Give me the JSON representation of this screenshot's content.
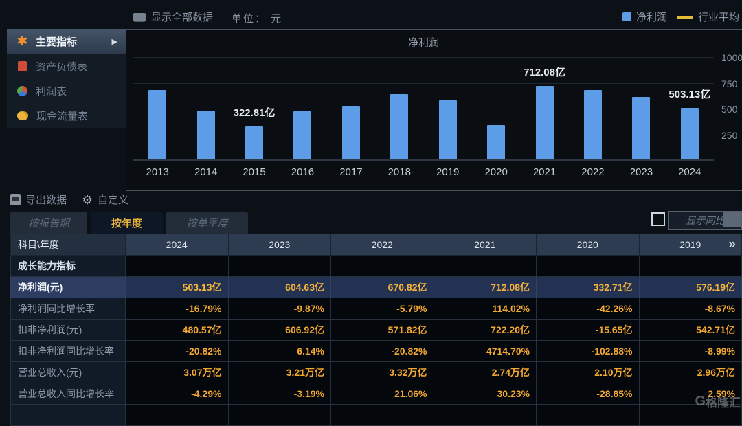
{
  "top_bar": {
    "show_all_label": "显示全部数据",
    "unit_label": "单位： 元",
    "legend": [
      {
        "label": "净利润",
        "color": "#5d9ce6",
        "type": "square"
      },
      {
        "label": "行业平均",
        "color": "#e3bc38",
        "type": "line"
      }
    ]
  },
  "sidebar": {
    "items": [
      {
        "label": "主要指标",
        "icon": "asterisk",
        "active": true
      },
      {
        "label": "资产负债表",
        "icon": "doc",
        "active": false
      },
      {
        "label": "利润表",
        "icon": "pie",
        "active": false
      },
      {
        "label": "现金流量表",
        "icon": "coins",
        "active": false
      }
    ]
  },
  "chart_data": {
    "type": "bar",
    "title": "净利润",
    "series_name": "净利润",
    "secondary_series_name": "行业平均",
    "categories": [
      "2013",
      "2014",
      "2015",
      "2016",
      "2017",
      "2018",
      "2019",
      "2020",
      "2021",
      "2022",
      "2023",
      "2024"
    ],
    "values": [
      671.8,
      474.4,
      322.81,
      464.2,
      511.2,
      630.9,
      576.19,
      332.71,
      712.08,
      670.82,
      604.63,
      503.13
    ],
    "data_labels": {
      "2015": "322.81亿",
      "2021": "712.08亿",
      "2024": "503.13亿"
    },
    "unit": "亿",
    "xlabel": "",
    "ylabel": "",
    "ylim": [
      0,
      1000
    ],
    "yticks": [
      250,
      500,
      750,
      1000
    ],
    "grid": true,
    "bar_color": "#5d9ce6",
    "legend_position": "top-right"
  },
  "toolbar": {
    "export_label": "导出数据",
    "customize_label": "自定义"
  },
  "tabs": [
    {
      "label": "按报告期",
      "active": false
    },
    {
      "label": "按年度",
      "active": true
    },
    {
      "label": "按单季度",
      "active": false
    }
  ],
  "yoy": {
    "label": "显示同比",
    "checked": false
  },
  "table": {
    "header": [
      "科目\\年度",
      "2024",
      "2023",
      "2022",
      "2021",
      "2020",
      "2019"
    ],
    "more_icon": "»",
    "rows": [
      {
        "label": "成长能力指标",
        "type": "section",
        "values": [
          "",
          "",
          "",
          "",
          "",
          ""
        ]
      },
      {
        "label": "净利润(元)",
        "type": "highlight",
        "values": [
          "503.13亿",
          "604.63亿",
          "670.82亿",
          "712.08亿",
          "332.71亿",
          "576.19亿"
        ]
      },
      {
        "label": "净利润同比增长率",
        "type": "normal",
        "values": [
          "-16.79%",
          "-9.87%",
          "-5.79%",
          "114.02%",
          "-42.26%",
          "-8.67%"
        ]
      },
      {
        "label": "扣非净利润(元)",
        "type": "normal",
        "values": [
          "480.57亿",
          "606.92亿",
          "571.82亿",
          "722.20亿",
          "-15.65亿",
          "542.71亿"
        ]
      },
      {
        "label": "扣非净利润同比增长率",
        "type": "normal",
        "values": [
          "-20.82%",
          "6.14%",
          "-20.82%",
          "4714.70%",
          "-102.88%",
          "-8.99%"
        ]
      },
      {
        "label": "营业总收入(元)",
        "type": "normal",
        "values": [
          "3.07万亿",
          "3.21万亿",
          "3.32万亿",
          "2.74万亿",
          "2.10万亿",
          "2.96万亿"
        ]
      },
      {
        "label": "营业总收入同比增长率",
        "type": "normal",
        "values": [
          "-4.29%",
          "-3.19%",
          "21.06%",
          "30.23%",
          "-28.85%",
          "2.59%"
        ]
      },
      {
        "label": "",
        "type": "partial",
        "values": [
          "",
          "",
          "",
          "",
          "",
          ""
        ]
      }
    ]
  },
  "watermark": {
    "logo": "G",
    "text": "格隆汇"
  }
}
